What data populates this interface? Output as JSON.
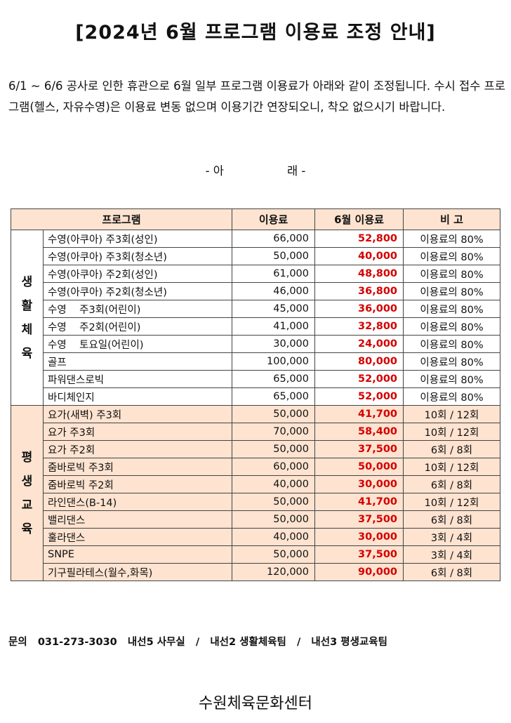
{
  "title": "[2024년 6월 프로그램 이용료 조정 안내]",
  "intro": "6/1 ~ 6/6 공사로 인한 휴관으로 6월 일부 프로그램 이용료가 아래와 같이 조정됩니다. 수시 접수 프로그램(헬스, 자유수영)은 이용료 변동 없으며 이용기간 연장되오니, 착오 없으시기 바랍니다.",
  "ara": {
    "left": "- 아",
    "right": "래 -"
  },
  "table": {
    "headers": [
      "프로그램",
      "이용료",
      "6월 이용료",
      "비 고"
    ],
    "groups": [
      {
        "label": "생활체육",
        "rows": [
          {
            "program": "수영(아쿠아) 주3회(성인)",
            "fee": "66,000",
            "june_fee": "52,800",
            "note": "이용료의 80%"
          },
          {
            "program": "수영(아쿠아) 주3회(청소년)",
            "fee": "50,000",
            "june_fee": "40,000",
            "note": "이용료의 80%"
          },
          {
            "program": "수영(아쿠아) 주2회(성인)",
            "fee": "61,000",
            "june_fee": "48,800",
            "note": "이용료의 80%"
          },
          {
            "program": "수영(아쿠아) 주2회(청소년)",
            "fee": "46,000",
            "june_fee": "36,800",
            "note": "이용료의 80%"
          },
          {
            "program": "수영    주3회(어린이)",
            "fee": "45,000",
            "june_fee": "36,000",
            "note": "이용료의 80%"
          },
          {
            "program": "수영    주2회(어린이)",
            "fee": "41,000",
            "june_fee": "32,800",
            "note": "이용료의 80%"
          },
          {
            "program": "수영    토요일(어린이)",
            "fee": "30,000",
            "june_fee": "24,000",
            "note": "이용료의 80%"
          },
          {
            "program": "골프",
            "fee": "100,000",
            "june_fee": "80,000",
            "note": "이용료의 80%"
          },
          {
            "program": "파워댄스로빅",
            "fee": "65,000",
            "june_fee": "52,000",
            "note": "이용료의 80%"
          },
          {
            "program": "바디체인지",
            "fee": "65,000",
            "june_fee": "52,000",
            "note": "이용료의 80%"
          }
        ]
      },
      {
        "label": "평생교육",
        "rows": [
          {
            "program": "요가(새벽) 주3회",
            "fee": "50,000",
            "june_fee": "41,700",
            "note": "10회 / 12회"
          },
          {
            "program": "요가 주3회",
            "fee": "70,000",
            "june_fee": "58,400",
            "note": "10회 / 12회"
          },
          {
            "program": "요가 주2회",
            "fee": "50,000",
            "june_fee": "37,500",
            "note": "6회 / 8회"
          },
          {
            "program": "줌바로빅 주3회",
            "fee": "60,000",
            "june_fee": "50,000",
            "note": "10회 / 12회"
          },
          {
            "program": "줌바로빅 주2회",
            "fee": "40,000",
            "june_fee": "30,000",
            "note": "6회 / 8회"
          },
          {
            "program": "라인댄스(B-14)",
            "fee": "50,000",
            "june_fee": "41,700",
            "note": "10회 / 12회"
          },
          {
            "program": "밸리댄스",
            "fee": "50,000",
            "june_fee": "37,500",
            "note": "6회 / 8회"
          },
          {
            "program": "훌라댄스",
            "fee": "40,000",
            "june_fee": "30,000",
            "note": "3회 / 4회"
          },
          {
            "program": "SNPE",
            "fee": "50,000",
            "june_fee": "37,500",
            "note": "3회 / 4회"
          },
          {
            "program": "기구필라테스(월수,화목)",
            "fee": "120,000",
            "june_fee": "90,000",
            "note": "6회 / 8회"
          }
        ]
      }
    ]
  },
  "contact": "문의   031-273-3030   내선5 사무실   /   내선2 생활체육팀   /   내선3 평생교육팀",
  "footer": "수원체육문화센터"
}
